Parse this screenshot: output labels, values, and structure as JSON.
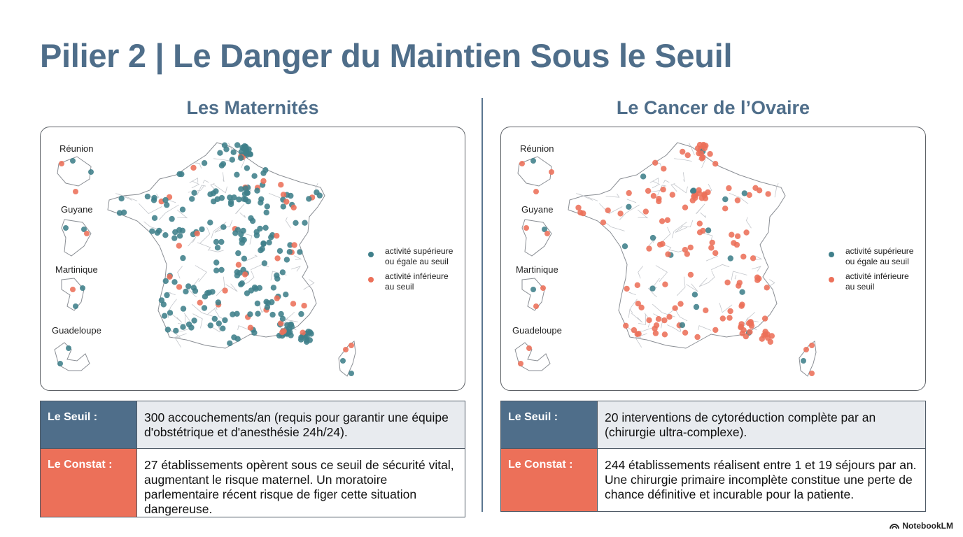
{
  "title": "Pilier 2 | Le Danger du Maintien Sous le Seuil",
  "colors": {
    "above": "#3f7f8a",
    "below": "#ec7059",
    "title": "#4f6e8a"
  },
  "panels": [
    {
      "title": "Les Maternités",
      "territories": [
        "Réunion",
        "Guyane",
        "Martinique",
        "Guadeloupe"
      ],
      "legend": {
        "above_line1": "activité supérieure",
        "above_line2": "ou égale au seuil",
        "below_line1": "activité inférieure",
        "below_line2": "au seuil"
      },
      "seuil_label": "Le Seuil :",
      "seuil_text": "300 accouchements/an (requis pour garantir une équipe d'obstétrique et d'anesthésie 24h/24).",
      "constat_label": "Le Constat :",
      "constat_text": "27 établissements opèrent sous ce seuil de sécurité vital, augmentant le risque maternel. Un moratoire parlementaire récent risque de figer cette situation dangereuse."
    },
    {
      "title": "Le Cancer de l’Ovaire",
      "territories": [
        "Réunion",
        "Guyane",
        "Martinique",
        "Guadeloupe"
      ],
      "legend": {
        "above_line1": "activité supérieure",
        "above_line2": "ou égale au seuil",
        "below_line1": "activité inférieure",
        "below_line2": "au seuil"
      },
      "seuil_label": "Le Seuil :",
      "seuil_text": "20 interventions de cytoréduction complète par an (chirurgie ultra-complexe).",
      "constat_label": "Le Constat :",
      "constat_text": "244 établissements réalisent entre 1 et 19 séjours par an. Une chirurgie primaire incomplète constitue une perte de chance définitive et incurable pour la patiente."
    }
  ],
  "brand": "NotebookLM"
}
